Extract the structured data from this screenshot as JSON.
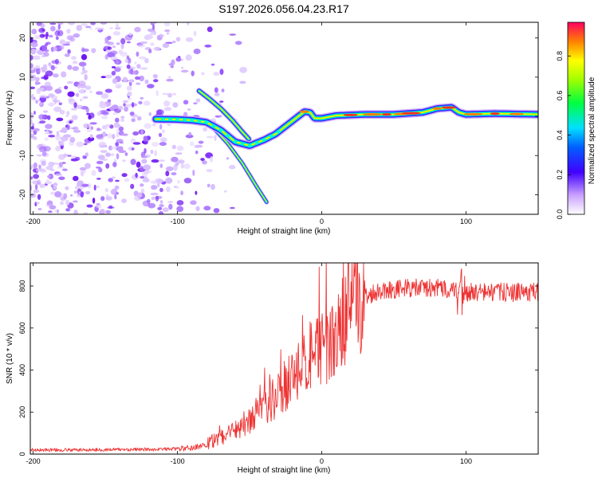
{
  "title": "S197.2026.056.04.23.R17",
  "chart_data": [
    {
      "type": "heatmap",
      "title": "",
      "xlabel": "Height of straight line (km)",
      "ylabel": "Frequency (Hz)",
      "xlim": [
        -202,
        150
      ],
      "ylim": [
        -25,
        24
      ],
      "xticks": [
        -200,
        -100,
        0,
        100
      ],
      "yticks": [
        -20,
        -10,
        0,
        10,
        20
      ],
      "colorbar": {
        "label": "Normalized spectral amplitude",
        "range": [
          0,
          0.97
        ],
        "ticks": [
          0.0,
          0.2,
          0.4,
          0.6,
          0.8
        ],
        "tick_labels": [
          "0.0",
          "0.2",
          "0.4",
          "0.6",
          "0.8"
        ]
      },
      "main_trace": [
        [
          -115,
          -0.7
        ],
        [
          -100,
          -0.8
        ],
        [
          -90,
          -1.0
        ],
        [
          -80,
          -1.5
        ],
        [
          -70,
          -3.5
        ],
        [
          -60,
          -6.5
        ],
        [
          -50,
          -7.5
        ],
        [
          -40,
          -6.0
        ],
        [
          -32,
          -4.5
        ],
        [
          -25,
          -2.5
        ],
        [
          -18,
          -0.5
        ],
        [
          -12,
          1.2
        ],
        [
          -8,
          1.0
        ],
        [
          -5,
          -0.5
        ],
        [
          0,
          -0.5
        ],
        [
          10,
          0.2
        ],
        [
          30,
          0.5
        ],
        [
          50,
          0.5
        ],
        [
          70,
          1.0
        ],
        [
          80,
          2.0
        ],
        [
          90,
          2.3
        ],
        [
          95,
          1.0
        ],
        [
          100,
          0.5
        ],
        [
          120,
          0.7
        ],
        [
          150,
          0.5
        ]
      ],
      "branch_upper": [
        [
          -85,
          6.5
        ],
        [
          -78,
          4.5
        ],
        [
          -70,
          2.0
        ],
        [
          -62,
          -1.0
        ],
        [
          -55,
          -4.0
        ],
        [
          -50,
          -6.0
        ]
      ],
      "branch_lower": [
        [
          -75,
          -3.0
        ],
        [
          -65,
          -7.0
        ],
        [
          -55,
          -12.0
        ],
        [
          -45,
          -18.0
        ],
        [
          -38,
          -22.0
        ]
      ],
      "noise_region": [
        -202,
        -90
      ]
    },
    {
      "type": "line",
      "title": "",
      "xlabel": "Height of straight line (km)",
      "ylabel": "SNR (10 * v/v)",
      "xlim": [
        -202,
        150
      ],
      "ylim": [
        0,
        910
      ],
      "xticks": [
        -200,
        -100,
        0,
        100
      ],
      "yticks": [
        0,
        200,
        400,
        600,
        800
      ],
      "series": [
        {
          "name": "SNR",
          "color": "#ee3333",
          "x": [
            -202,
            -180,
            -160,
            -140,
            -120,
            -100,
            -90,
            -80,
            -70,
            -60,
            -50,
            -40,
            -30,
            -25,
            -20,
            -10,
            0,
            10,
            20,
            30,
            40,
            60,
            80,
            95,
            100,
            120,
            150
          ],
          "y": [
            20,
            20,
            20,
            22,
            22,
            25,
            30,
            45,
            80,
            120,
            160,
            230,
            280,
            330,
            380,
            450,
            500,
            570,
            680,
            750,
            780,
            790,
            790,
            780,
            770,
            770,
            770
          ]
        }
      ]
    }
  ]
}
